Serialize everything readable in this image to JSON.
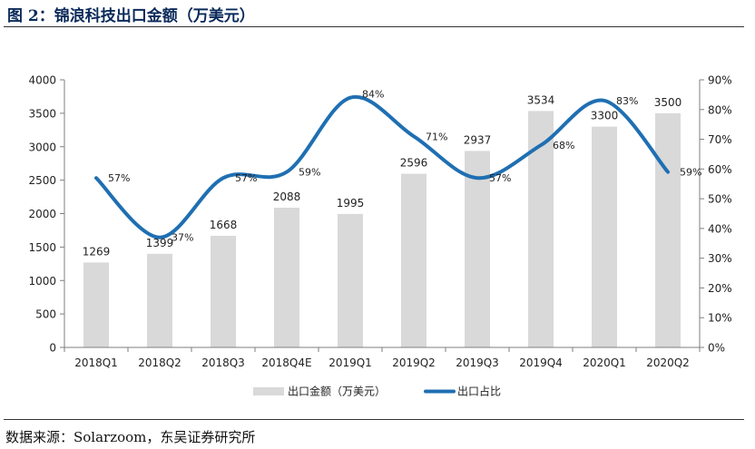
{
  "figure": {
    "title": "图 2：锦浪科技出口金额（万美元）",
    "source": "数据来源：Solarzoom，东吴证券研究所"
  },
  "chart_data": {
    "type": "bar",
    "combo": "bar + line (dual axis)",
    "categories": [
      "2018Q1",
      "2018Q2",
      "2018Q3",
      "2018Q4E",
      "2019Q1",
      "2019Q2",
      "2019Q3",
      "2019Q4",
      "2020Q1",
      "2020Q2"
    ],
    "series": [
      {
        "name": "出口金额（万美元）",
        "type": "bar",
        "axis": "left",
        "color": "#d9d9d9",
        "values": [
          1269,
          1399,
          1668,
          2088,
          1995,
          2596,
          2937,
          3534,
          3300,
          3500
        ],
        "labels": [
          "1269",
          "1399",
          "1668",
          "2088",
          "1995",
          "2596",
          "2937",
          "3534",
          "3300",
          "3500"
        ]
      },
      {
        "name": "出口占比",
        "type": "line",
        "axis": "right",
        "color": "#1f6fb2",
        "values": [
          57,
          37,
          57,
          59,
          84,
          71,
          57,
          68,
          83,
          59
        ],
        "labels": [
          "57%",
          "37%",
          "57%",
          "59%",
          "84%",
          "71%",
          "57%",
          "68%",
          "83%",
          "59%"
        ]
      }
    ],
    "y_left": {
      "min": 0,
      "max": 4000,
      "step": 500,
      "ticks": [
        "0",
        "500",
        "1000",
        "1500",
        "2000",
        "2500",
        "3000",
        "3500",
        "4000"
      ]
    },
    "y_right": {
      "min": 0,
      "max": 90,
      "step": 10,
      "ticks": [
        "0%",
        "10%",
        "20%",
        "30%",
        "40%",
        "50%",
        "60%",
        "70%",
        "80%",
        "90%"
      ]
    },
    "grid": false,
    "legend_position": "bottom"
  }
}
